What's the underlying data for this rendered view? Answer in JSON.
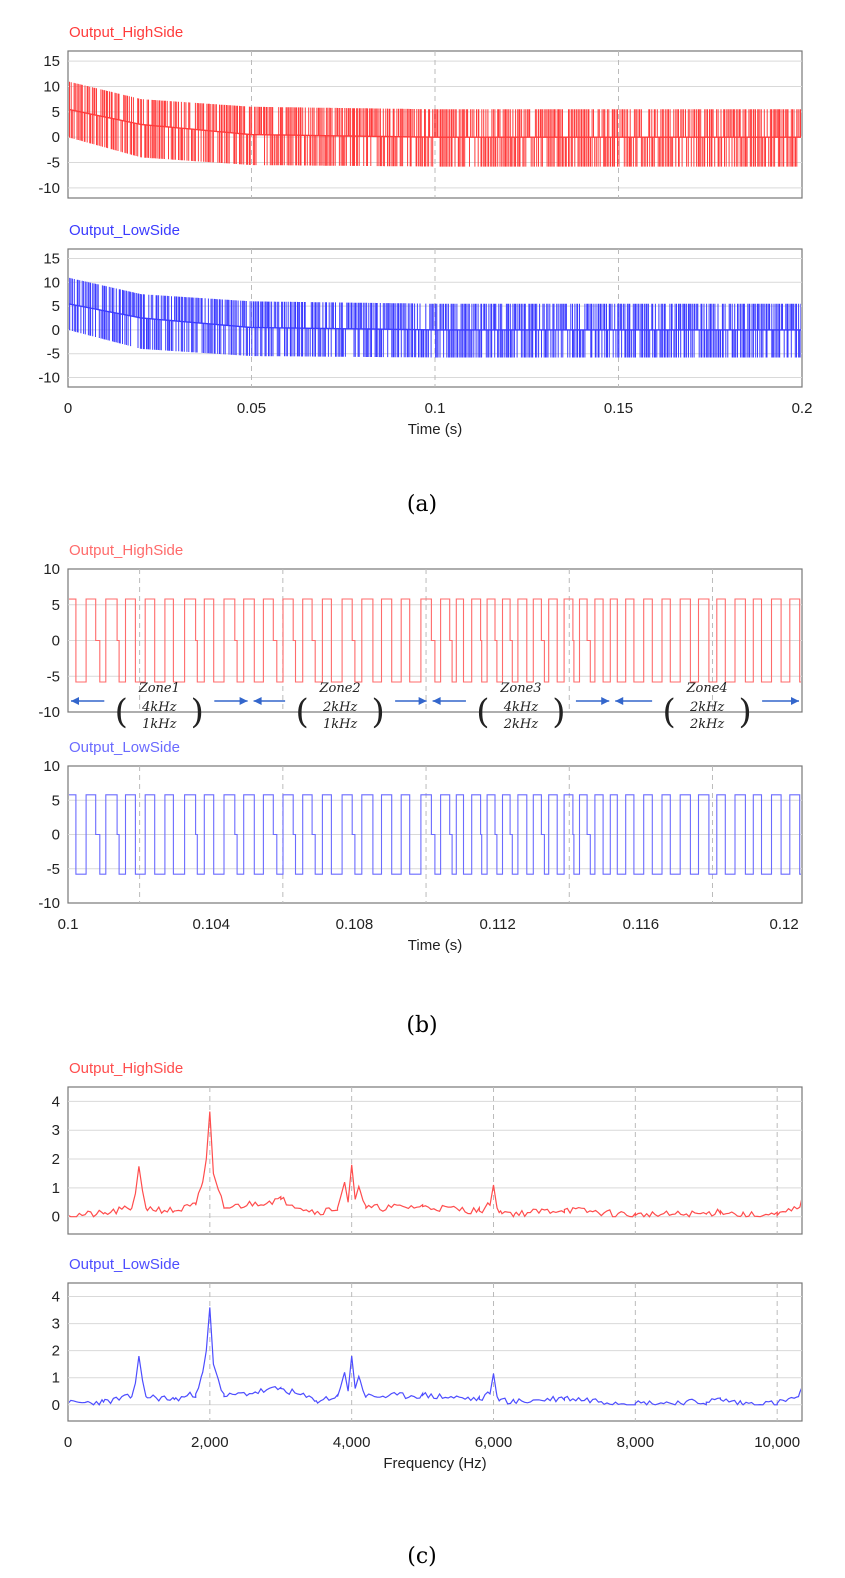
{
  "figure": {
    "captions": [
      "(a)",
      "(b)",
      "(c)"
    ]
  },
  "chart_data": [
    {
      "id": "a-high",
      "type": "line",
      "panel": "a",
      "title": "Output_HighSide",
      "series": [
        {
          "name": "Output_HighSide",
          "color": "#ff3b3b",
          "description": "dense PWM pulses, envelope decaying from about 11 to about 5.5",
          "x_range": [
            0,
            0.2
          ],
          "envelope_upper": {
            "x": [
              0,
              0.02,
              0.05,
              0.1,
              0.2
            ],
            "y": [
              11,
              7.5,
              6,
              5.5,
              5.5
            ]
          },
          "envelope_lower": {
            "x": [
              0,
              0.02,
              0.05,
              0.1,
              0.2
            ],
            "y": [
              0,
              -4,
              -5.5,
              -5.8,
              -5.8
            ]
          },
          "mid_trace": {
            "x": [
              0,
              0.02,
              0.05,
              0.1,
              0.2
            ],
            "y": [
              5.5,
              2.5,
              0.5,
              0,
              0
            ]
          }
        }
      ],
      "xlim": [
        0,
        0.2
      ],
      "ylim": [
        -12,
        17
      ],
      "yticks": [
        15,
        10,
        5,
        0,
        -5,
        -10
      ],
      "xticks": [],
      "xlabel": ""
    },
    {
      "id": "a-low",
      "type": "line",
      "panel": "a",
      "title": "Output_LowSide",
      "series": [
        {
          "name": "Output_LowSide",
          "color": "#3b3bff",
          "description": "dense PWM pulses, envelope decaying from about 11 to about 5.5",
          "x_range": [
            0,
            0.2
          ],
          "envelope_upper": {
            "x": [
              0,
              0.02,
              0.05,
              0.1,
              0.2
            ],
            "y": [
              11,
              7.5,
              6,
              5.5,
              5.5
            ]
          },
          "envelope_lower": {
            "x": [
              0,
              0.02,
              0.05,
              0.1,
              0.2
            ],
            "y": [
              0,
              -4,
              -5.5,
              -5.8,
              -5.8
            ]
          },
          "mid_trace": {
            "x": [
              0,
              0.02,
              0.05,
              0.1,
              0.2
            ],
            "y": [
              5.5,
              2.5,
              0.5,
              0,
              0
            ]
          }
        }
      ],
      "xlim": [
        0,
        0.2
      ],
      "ylim": [
        -12,
        17
      ],
      "yticks": [
        15,
        10,
        5,
        0,
        -5,
        -10
      ],
      "xticks": [
        0,
        0.05,
        0.1,
        0.15,
        0.2
      ],
      "xtick_labels": [
        "0",
        "0.05",
        "0.1",
        "0.15",
        "0.2"
      ],
      "xlabel": "Time (s)"
    },
    {
      "id": "b-high",
      "type": "line",
      "panel": "b",
      "title": "Output_HighSide",
      "series": [
        {
          "name": "Output_HighSide",
          "color": "#ff6b6b",
          "description": "three-level switching waveform, levels 5.8 / 0 / -5.8",
          "levels": [
            5.8,
            0,
            -5.8
          ]
        }
      ],
      "xlim": [
        0.1,
        0.1205
      ],
      "ylim": [
        -10,
        10
      ],
      "yticks": [
        10,
        5,
        0,
        -5,
        -10
      ],
      "xticks": [],
      "xlabel": "",
      "zones": [
        {
          "label": "Zone1",
          "f1": "4kHz",
          "f2": "1kHz",
          "from": 0.1,
          "to": 0.1051
        },
        {
          "label": "Zone2",
          "f1": "2kHz",
          "f2": "1kHz",
          "from": 0.1051,
          "to": 0.1101
        },
        {
          "label": "Zone3",
          "f1": "4kHz",
          "f2": "2kHz",
          "from": 0.1101,
          "to": 0.1152
        },
        {
          "label": "Zone4",
          "f1": "2kHz",
          "f2": "2kHz",
          "from": 0.1152,
          "to": 0.1205
        }
      ]
    },
    {
      "id": "b-low",
      "type": "line",
      "panel": "b",
      "title": "Output_LowSide",
      "series": [
        {
          "name": "Output_LowSide",
          "color": "#6b6bff",
          "description": "three-level switching waveform, levels 5.8 / 0 / -5.8",
          "levels": [
            5.8,
            0,
            -5.8
          ]
        }
      ],
      "xlim": [
        0.1,
        0.1205
      ],
      "ylim": [
        -10,
        10
      ],
      "yticks": [
        10,
        5,
        0,
        -5,
        -10
      ],
      "xticks": [
        0.1,
        0.104,
        0.108,
        0.112,
        0.116,
        0.12
      ],
      "xtick_labels": [
        "0.1",
        "0.104",
        "0.108",
        "0.112",
        "0.116",
        "0.12"
      ],
      "xlabel": "Time (s)"
    },
    {
      "id": "c-high",
      "type": "line",
      "panel": "c",
      "title": "Output_HighSide",
      "series": [
        {
          "name": "Output_HighSide",
          "color": "#ff4d4d",
          "x": [
            0,
            500,
            900,
            950,
            1000,
            1050,
            1100,
            1500,
            1800,
            1900,
            1950,
            2000,
            2050,
            2100,
            2200,
            3000,
            3500,
            3800,
            3900,
            3950,
            4000,
            4050,
            4100,
            4200,
            5000,
            5800,
            5950,
            6000,
            6050,
            6100,
            6300,
            7000,
            8000,
            9000,
            9200,
            9500,
            10000,
            10300,
            10350
          ],
          "y": [
            0.05,
            0.1,
            0.3,
            0.8,
            1.75,
            0.9,
            0.3,
            0.2,
            0.4,
            1.2,
            2.0,
            3.65,
            1.5,
            1.1,
            0.3,
            0.6,
            0.15,
            0.3,
            1.2,
            0.5,
            1.8,
            0.6,
            1.05,
            0.3,
            0.35,
            0.2,
            0.4,
            1.1,
            0.3,
            0.2,
            0.1,
            0.25,
            0.05,
            0.1,
            0.2,
            0.05,
            0.05,
            0.3,
            0.65
          ]
        }
      ],
      "xlim": [
        0,
        10350
      ],
      "ylim": [
        -0.6,
        4.5
      ],
      "yticks": [
        4,
        3,
        2,
        1,
        0
      ],
      "xticks": [],
      "xlabel": ""
    },
    {
      "id": "c-low",
      "type": "line",
      "panel": "c",
      "title": "Output_LowSide",
      "series": [
        {
          "name": "Output_LowSide",
          "color": "#4d4dff",
          "x": [
            0,
            500,
            900,
            950,
            1000,
            1050,
            1100,
            1500,
            1800,
            1900,
            1950,
            2000,
            2050,
            2100,
            2200,
            3000,
            3500,
            3800,
            3900,
            3950,
            4000,
            4050,
            4100,
            4200,
            5000,
            5800,
            5950,
            6000,
            6050,
            6100,
            6300,
            7000,
            8000,
            9000,
            9200,
            9500,
            10000,
            10300,
            10350
          ],
          "y": [
            0.05,
            0.1,
            0.3,
            0.8,
            1.8,
            0.9,
            0.3,
            0.2,
            0.4,
            1.2,
            2.0,
            3.6,
            1.5,
            1.1,
            0.3,
            0.6,
            0.15,
            0.3,
            1.2,
            0.5,
            1.8,
            0.6,
            1.05,
            0.3,
            0.35,
            0.2,
            0.4,
            1.15,
            0.3,
            0.2,
            0.1,
            0.25,
            0.05,
            0.1,
            0.2,
            0.05,
            0.05,
            0.3,
            0.65
          ]
        }
      ],
      "xlim": [
        0,
        10350
      ],
      "ylim": [
        -0.6,
        4.5
      ],
      "yticks": [
        4,
        3,
        2,
        1,
        0
      ],
      "xticks": [
        0,
        2000,
        4000,
        6000,
        8000,
        10000
      ],
      "xtick_labels": [
        "0",
        "2,000",
        "4,000",
        "6,000",
        "8,000",
        "10,000"
      ],
      "xlabel": "Frequency (Hz)"
    }
  ]
}
